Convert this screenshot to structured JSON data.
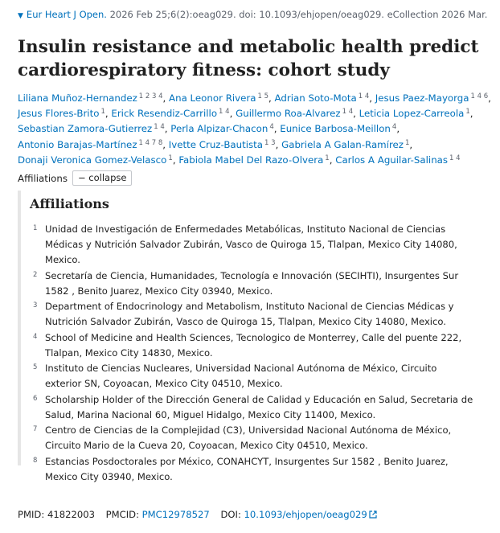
{
  "citation": {
    "journal": "Eur Heart J Open.",
    "details": "2026 Feb 25;6(2):oeag029. doi: 10.1093/ehjopen/oeag029. eCollection 2026 Mar."
  },
  "title": "Insulin resistance and metabolic health predict cardiorespiratory fitness: cohort study",
  "authors": [
    {
      "name": "Liliana Muñoz-Hernandez",
      "affs": "1 2 3 4"
    },
    {
      "name": "Ana Leonor Rivera",
      "affs": "1 5"
    },
    {
      "name": "Adrian Soto-Mota",
      "affs": "1 4"
    },
    {
      "name": "Jesus Paez-Mayorga",
      "affs": "1 4 6"
    },
    {
      "name": "Jesus Flores-Brito",
      "affs": "1"
    },
    {
      "name": "Erick Resendiz-Carrillo",
      "affs": "1 4"
    },
    {
      "name": "Guillermo Roa-Alvarez",
      "affs": "1 4"
    },
    {
      "name": "Leticia Lopez-Carreola",
      "affs": "1"
    },
    {
      "name": "Sebastian Zamora-Gutierrez",
      "affs": "1 4"
    },
    {
      "name": "Perla Alpizar-Chacon",
      "affs": "4"
    },
    {
      "name": "Eunice Barbosa-Meillon",
      "affs": "4"
    },
    {
      "name": "Antonio Barajas-Martínez",
      "affs": "1 4 7 8"
    },
    {
      "name": "Ivette Cruz-Bautista",
      "affs": "1 3"
    },
    {
      "name": "Gabriela A Galan-Ramírez",
      "affs": "1"
    },
    {
      "name": "Donaji Veronica Gomez-Velasco",
      "affs": "1"
    },
    {
      "name": "Fabiola Mabel Del Razo-Olvera",
      "affs": "1"
    },
    {
      "name": "Carlos A Aguilar-Salinas",
      "affs": "1 4"
    }
  ],
  "affiliations_label": "Affiliations",
  "collapse_label": "− collapse",
  "affiliations_heading": "Affiliations",
  "affiliations": [
    {
      "num": "1",
      "text": "Unidad de Investigación de Enfermedades Metabólicas, Instituto Nacional de Ciencias Médicas y Nutrición Salvador Zubirán, Vasco de Quiroga 15, Tlalpan, Mexico City 14080, Mexico."
    },
    {
      "num": "2",
      "text": "Secretaría de Ciencia, Humanidades, Tecnología e Innovación (SECIHTI), Insurgentes Sur 1582 , Benito Juarez, Mexico City 03940, Mexico."
    },
    {
      "num": "3",
      "text": "Department of Endocrinology and Metabolism, Instituto Nacional de Ciencias Médicas y Nutrición Salvador Zubirán, Vasco de Quiroga 15, Tlalpan, Mexico City 14080, Mexico."
    },
    {
      "num": "4",
      "text": "School of Medicine and Health Sciences, Tecnologico de Monterrey, Calle del puente 222, Tlalpan, Mexico City 14830, Mexico."
    },
    {
      "num": "5",
      "text": "Instituto de Ciencias Nucleares, Universidad Nacional Autónoma de México, Circuito exterior SN, Coyoacan, Mexico City 04510, Mexico."
    },
    {
      "num": "6",
      "text": "Scholarship Holder of the Dirección General de Calidad y Educación en Salud, Secretaria de Salud, Marina Nacional 60, Miguel Hidalgo, Mexico City 11400, Mexico."
    },
    {
      "num": "7",
      "text": "Centro de Ciencias de la Complejidad (C3), Universidad Nacional Autónoma de México, Circuito Mario de la Cueva 20, Coyoacan, Mexico City 04510, Mexico."
    },
    {
      "num": "8",
      "text": "Estancias Posdoctorales por México, CONAHCYT, Insurgentes Sur 1582 , Benito Juarez, Mexico City 03940, Mexico."
    }
  ],
  "identifiers": {
    "pmid_label": "PMID:",
    "pmid": "41822003",
    "pmcid_label": "PMCID:",
    "pmcid": "PMC12978527",
    "doi_label": "DOI:",
    "doi": "10.1093/ehjopen/oeag029"
  },
  "colors": {
    "link": "#0071bc",
    "muted": "#5b616b",
    "text": "#212121",
    "panel_border": "#e6e6e6"
  },
  "icons": [
    "caret-down-icon",
    "external-link-icon"
  ]
}
